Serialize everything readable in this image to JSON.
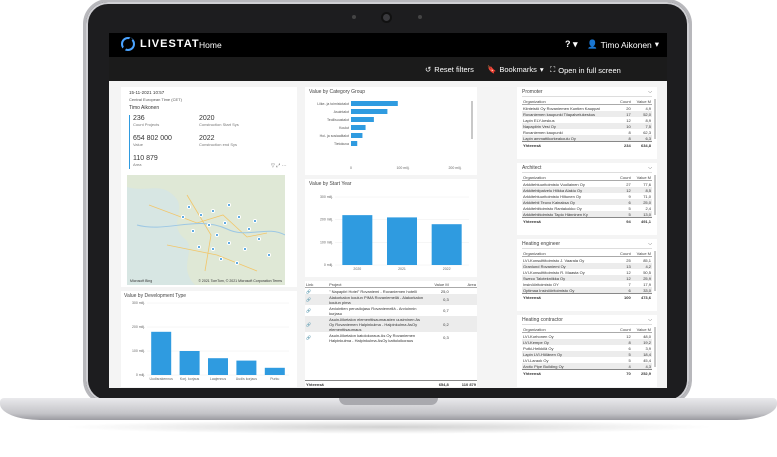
{
  "app": {
    "brand": "LIVESTAT",
    "nav_home": "Home",
    "help": "?",
    "user_name": "Timo Aikonen",
    "accent": "#2f9be0"
  },
  "toolbar": {
    "reset": "Reset filters",
    "bookmarks": "Bookmarks",
    "fullscreen": "Open in full screen"
  },
  "header": {
    "datetime": "15-11-2021 10:57",
    "timezone": "Central European Time (CET)",
    "user": "Timo Aikonen"
  },
  "kpis": {
    "count_projects": "236",
    "count_projects_label": "Count Projects",
    "start_year": "2020",
    "start_year_label": "Construction Start Sys",
    "value": "654 802 000",
    "value_label": "Value",
    "end_year": "2022",
    "end_year_label": "Construction end Sys",
    "area": "110 879",
    "area_label": "Area"
  },
  "map": {
    "logo": "Microsoft Bing",
    "attribution": "© 2021 TomTom, © 2021 Microsoft Corporation Terms"
  },
  "charts": {
    "category": {
      "title": "Value by Category Group",
      "categories": [
        "Liike- ja toimistotalot",
        "Asuintalot",
        "Teollisuustalot",
        "Koulut",
        "Hoi- ja sosiaalitalot",
        "Tietokuva"
      ],
      "values": [
        90,
        70,
        44,
        28,
        22,
        12
      ],
      "ticks": [
        "0",
        "100 milj.",
        "200 milj."
      ]
    },
    "start_year": {
      "title": "Value by Start Year",
      "categories": [
        "2020",
        "2021",
        "2022"
      ],
      "values": [
        220,
        210,
        180
      ],
      "ticks": [
        "0 milj.",
        "100 milj.",
        "200 milj.",
        "300 milj."
      ]
    },
    "dev_type": {
      "title": "Value by Development Type",
      "categories": [
        "Uudisrakennus",
        "Korj. korjaus",
        "Laajennus",
        "Uudis korjaus",
        "Purku"
      ],
      "values": [
        180,
        100,
        70,
        60,
        30
      ],
      "ticks": [
        "0 milj.",
        "100 milj.",
        "200 milj.",
        "300 milj."
      ]
    }
  },
  "projects": {
    "headers": [
      "Link",
      "Project",
      "Value M",
      "Area"
    ],
    "rows": [
      {
        "project": "\" Napapiiri Hotel\" Rovaniemi - Rovaniemen hotelli",
        "value": "25,0",
        "area": ""
      },
      {
        "project": "Alakorkalon koulun PIMA Rovaniemellä - Alakorkalon koulun pima",
        "value": "0,3",
        "area": ""
      },
      {
        "project": "Arviointien perusilojasu Rovaniemellä - Arvioinnin kurjasu",
        "value": "0,7",
        "area": ""
      },
      {
        "project": "Asuin-liiketalon elementtisaumausten uusiminen As Oy Rovaniemen Halpinkulma - Halpinkulma AsOy elementtisaumaus",
        "value": "0,2",
        "area": ""
      },
      {
        "project": "Asuin-liiketalon katolokoraus As Oy Rovaniemen Halpinkulma - Halpinkulma AsOy kattoloikoraus",
        "value": "0,3",
        "area": ""
      }
    ],
    "total_label": "Yhteensä",
    "total_value": "654,8",
    "total_area": "110 879"
  },
  "promoter": {
    "title": "Promoter",
    "headers": [
      "Organization",
      "Count",
      "Value M"
    ],
    "rows": [
      [
        "Kiinteistö Oy Rovaniemen Kuntien Kauppat",
        "20",
        "4,9"
      ],
      [
        "Rovaniemen kaupunki Tilapalvelukeskus",
        "17",
        "52,0"
      ],
      [
        "Lapin ELY-keskus",
        "12",
        "8,9"
      ],
      [
        "Napapiirin Vesi Oy",
        "10",
        "7,5"
      ],
      [
        "Rovaniemen kaupunki",
        "8",
        "62,3"
      ],
      [
        "Lapin ammattikorkeakoulu Oy",
        "8",
        "6,3"
      ]
    ],
    "total": [
      "Yhteensä",
      "234",
      "634,8"
    ]
  },
  "architect": {
    "title": "Architect",
    "headers": [
      "Organization",
      "Count",
      "Value M"
    ],
    "rows": [
      [
        "Arkkitehtuuritoimisto Vuollainen Oy",
        "27",
        "77,6"
      ],
      [
        "Arkkitehtipalvelu Hilkka Alakiu Oy",
        "12",
        "8,5"
      ],
      [
        "Arkkitehtuuritoimisto Hiltunen Oy",
        "9",
        "71,0"
      ],
      [
        "Arkkitehti Teuvo Kainaksa Oy",
        "6",
        "25,0"
      ],
      [
        "Arkkitehtitoimisto Rantakokko Oy",
        "5",
        "2,4"
      ],
      [
        "Arkkitehtitoimisto Tapio Hänninen Ky",
        "5",
        "13,0"
      ]
    ],
    "total": [
      "Yhteensä",
      "94",
      "491,1"
    ]
  },
  "heating": {
    "title": "Heating engineer",
    "headers": [
      "Organization",
      "Count",
      "Value M"
    ],
    "rows": [
      [
        "LVI-Konsulttitoimisto J. Vaarala Oy",
        "25",
        "85,1"
      ],
      [
        "Granlund Rovaniemi Oy",
        "13",
        "4,2"
      ],
      [
        "LVI-Konsulttitoimisto R. Maasta Oy",
        "12",
        "50,5"
      ],
      [
        "Sweco Talotekniikka Oy",
        "12",
        "25,9"
      ],
      [
        "Insinööritoimisto OY",
        "7",
        "17,9"
      ],
      [
        "Optimaa Insinööritoimisto Oy",
        "6",
        "33,0"
      ]
    ],
    "total": [
      "Yhteensä",
      "100",
      "473,6"
    ]
  },
  "contractor": {
    "title": "Heating contractor",
    "headers": [
      "Organization",
      "Count",
      "Value M"
    ],
    "rows": [
      [
        "LVI-Korhonen Oy",
        "12",
        "48,0"
      ],
      [
        "LVI-Kempe Oy",
        "8",
        "19,2"
      ],
      [
        "Putki-Heikkilä Oy",
        "6",
        "3,9"
      ],
      [
        "Lapin LVI-Hölänen Oy",
        "5",
        "18,4"
      ],
      [
        "LVI-Laraok Oy",
        "5",
        "45,4"
      ],
      [
        "Arctic Pipe Building Oy",
        "4",
        "4,3"
      ]
    ],
    "total": [
      "Yhteensä",
      "70",
      "252,9"
    ]
  }
}
